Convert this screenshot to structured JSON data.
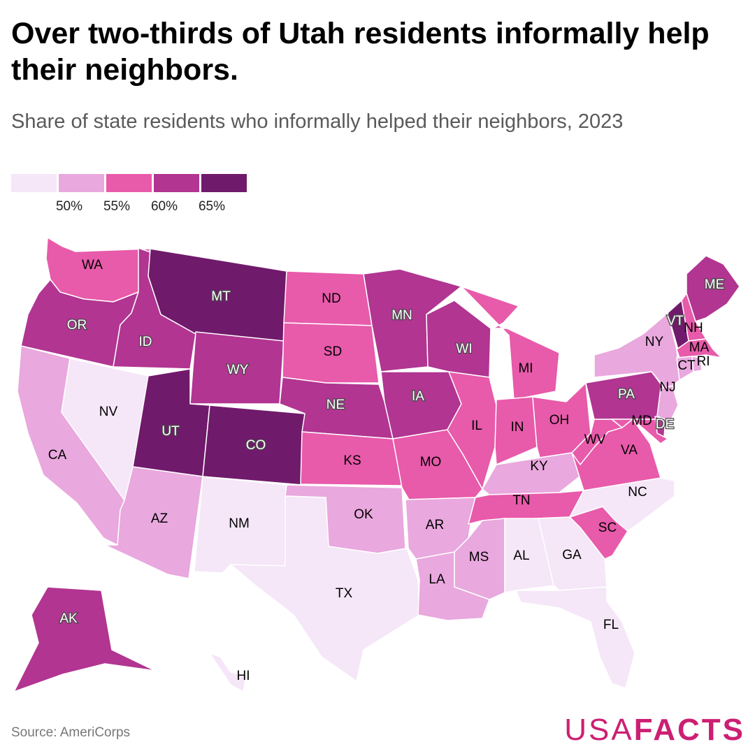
{
  "title": "Over two-thirds of Utah residents informally help their neighbors.",
  "subtitle": "Share of state residents who informally helped their neighbors, 2023",
  "legend": {
    "colors": [
      "#f5e6f8",
      "#e9a8de",
      "#e85aaa",
      "#b13591",
      "#701a6b"
    ],
    "ticks": [
      "50%",
      "55%",
      "60%",
      "65%"
    ]
  },
  "bins": [
    "below 50%",
    "50% to 55%",
    "55% to 60%",
    "60% to 65%",
    "65% and above"
  ],
  "states": [
    {
      "abbr": "WA",
      "bin": 2
    },
    {
      "abbr": "OR",
      "bin": 3
    },
    {
      "abbr": "CA",
      "bin": 1
    },
    {
      "abbr": "NV",
      "bin": 0
    },
    {
      "abbr": "ID",
      "bin": 3
    },
    {
      "abbr": "MT",
      "bin": 4
    },
    {
      "abbr": "WY",
      "bin": 3
    },
    {
      "abbr": "UT",
      "bin": 4
    },
    {
      "abbr": "CO",
      "bin": 4
    },
    {
      "abbr": "AZ",
      "bin": 1
    },
    {
      "abbr": "NM",
      "bin": 0
    },
    {
      "abbr": "ND",
      "bin": 2
    },
    {
      "abbr": "SD",
      "bin": 2
    },
    {
      "abbr": "NE",
      "bin": 3
    },
    {
      "abbr": "KS",
      "bin": 2
    },
    {
      "abbr": "OK",
      "bin": 1
    },
    {
      "abbr": "TX",
      "bin": 0
    },
    {
      "abbr": "MN",
      "bin": 3
    },
    {
      "abbr": "IA",
      "bin": 3
    },
    {
      "abbr": "MO",
      "bin": 2
    },
    {
      "abbr": "AR",
      "bin": 1
    },
    {
      "abbr": "LA",
      "bin": 1
    },
    {
      "abbr": "WI",
      "bin": 3
    },
    {
      "abbr": "IL",
      "bin": 2
    },
    {
      "abbr": "MI",
      "bin": 2
    },
    {
      "abbr": "IN",
      "bin": 2
    },
    {
      "abbr": "OH",
      "bin": 2
    },
    {
      "abbr": "KY",
      "bin": 1
    },
    {
      "abbr": "TN",
      "bin": 2
    },
    {
      "abbr": "MS",
      "bin": 1
    },
    {
      "abbr": "AL",
      "bin": 0
    },
    {
      "abbr": "GA",
      "bin": 0
    },
    {
      "abbr": "FL",
      "bin": 0
    },
    {
      "abbr": "SC",
      "bin": 2
    },
    {
      "abbr": "NC",
      "bin": 0
    },
    {
      "abbr": "VA",
      "bin": 2
    },
    {
      "abbr": "WV",
      "bin": 2
    },
    {
      "abbr": "PA",
      "bin": 3
    },
    {
      "abbr": "NY",
      "bin": 1
    },
    {
      "abbr": "NJ",
      "bin": 1
    },
    {
      "abbr": "DE",
      "bin": 3
    },
    {
      "abbr": "MD",
      "bin": 2
    },
    {
      "abbr": "ME",
      "bin": 3
    },
    {
      "abbr": "NH",
      "bin": 2
    },
    {
      "abbr": "VT",
      "bin": 4
    },
    {
      "abbr": "MA",
      "bin": 2
    },
    {
      "abbr": "CT",
      "bin": 1
    },
    {
      "abbr": "RI",
      "bin": 1
    },
    {
      "abbr": "AK",
      "bin": 3
    },
    {
      "abbr": "HI",
      "bin": 0
    }
  ],
  "source": "Source: AmeriCorps",
  "logo": {
    "part1": "USA",
    "part2": "FACTS"
  }
}
